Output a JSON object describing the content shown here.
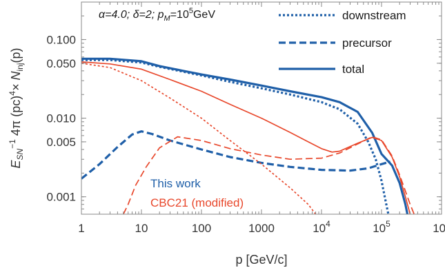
{
  "chart_data": {
    "type": "line",
    "annotation_parts": [
      "α=4.0; δ=2; p",
      "M",
      "=10",
      "5",
      "GeV"
    ],
    "xlabel": "p [GeV/c]",
    "ylabel_parts": [
      "E",
      "SN",
      "−1",
      " 4π (pc)",
      "4",
      "× N",
      "inj",
      "(p)"
    ],
    "x_scale": "log",
    "y_scale": "log",
    "xlim": [
      1,
      1000000
    ],
    "ylim": [
      0.0006,
      0.3
    ],
    "grid": false,
    "x_ticks": [
      {
        "value": 1,
        "label": "1"
      },
      {
        "value": 10,
        "label": "10"
      },
      {
        "value": 100,
        "label": "100"
      },
      {
        "value": 1000,
        "label": "1000"
      },
      {
        "value": 10000,
        "base": "10",
        "exp": "4"
      },
      {
        "value": 100000,
        "base": "10",
        "exp": "5"
      },
      {
        "value": 1000000,
        "base": "10",
        "exp": "6"
      }
    ],
    "y_ticks": [
      {
        "value": 0.001,
        "label": "0.001"
      },
      {
        "value": 0.005,
        "label": "0.005"
      },
      {
        "value": 0.01,
        "label": "0.010"
      },
      {
        "value": 0.05,
        "label": "0.050"
      },
      {
        "value": 0.1,
        "label": "0.100"
      }
    ],
    "legend": {
      "placement": "top-right",
      "entries": [
        {
          "label": "downstream",
          "dash": "dotted"
        },
        {
          "label": "precursor",
          "dash": "dashed"
        },
        {
          "label": "total",
          "dash": "solid"
        }
      ]
    },
    "colors": {
      "this_work": "#1f5fa8",
      "cbc21": "#e8472b"
    },
    "group_labels": {
      "this_work": "This work",
      "cbc21": "CBC21 (modified)"
    },
    "series": [
      {
        "group": "this_work",
        "component": "total",
        "dash": "solid",
        "width": 3.2,
        "points": [
          [
            1,
            0.057
          ],
          [
            3,
            0.057
          ],
          [
            10,
            0.053
          ],
          [
            20,
            0.046
          ],
          [
            50,
            0.04
          ],
          [
            100,
            0.036
          ],
          [
            300,
            0.031
          ],
          [
            1000,
            0.026
          ],
          [
            3000,
            0.022
          ],
          [
            10000,
            0.0185
          ],
          [
            20000,
            0.016
          ],
          [
            40000,
            0.012
          ],
          [
            70000,
            0.0065
          ],
          [
            100000,
            0.0035
          ],
          [
            150000,
            0.0025
          ],
          [
            200000,
            0.0015
          ],
          [
            250000,
            0.0008
          ],
          [
            270000,
            0.0006
          ]
        ]
      },
      {
        "group": "this_work",
        "component": "downstream",
        "dash": "dotted",
        "width": 3.2,
        "points": [
          [
            1,
            0.055
          ],
          [
            3,
            0.055
          ],
          [
            10,
            0.051
          ],
          [
            20,
            0.045
          ],
          [
            50,
            0.039
          ],
          [
            100,
            0.035
          ],
          [
            300,
            0.029
          ],
          [
            1000,
            0.024
          ],
          [
            3000,
            0.02
          ],
          [
            10000,
            0.016
          ],
          [
            20000,
            0.013
          ],
          [
            40000,
            0.0085
          ],
          [
            60000,
            0.005
          ],
          [
            80000,
            0.003
          ],
          [
            100000,
            0.0016
          ],
          [
            120000,
            0.0008
          ],
          [
            130000,
            0.0006
          ]
        ]
      },
      {
        "group": "this_work",
        "component": "precursor",
        "dash": "dashed",
        "width": 3.2,
        "points": [
          [
            1,
            0.0017
          ],
          [
            2,
            0.0026
          ],
          [
            4,
            0.0043
          ],
          [
            7,
            0.0062
          ],
          [
            10,
            0.0068
          ],
          [
            15,
            0.0063
          ],
          [
            30,
            0.0052
          ],
          [
            100,
            0.004
          ],
          [
            300,
            0.0032
          ],
          [
            1000,
            0.0027
          ],
          [
            3000,
            0.0024
          ],
          [
            10000,
            0.0022
          ],
          [
            30000,
            0.00215
          ],
          [
            60000,
            0.0023
          ],
          [
            100000,
            0.0026
          ],
          [
            140000,
            0.0028
          ]
        ]
      },
      {
        "group": "cbc21",
        "component": "total",
        "dash": "solid",
        "width": 1.7,
        "points": [
          [
            1,
            0.052
          ],
          [
            3,
            0.049
          ],
          [
            10,
            0.042
          ],
          [
            30,
            0.031
          ],
          [
            100,
            0.022
          ],
          [
            300,
            0.015
          ],
          [
            1000,
            0.01
          ],
          [
            3000,
            0.0066
          ],
          [
            6000,
            0.005
          ],
          [
            10000,
            0.0041
          ],
          [
            15000,
            0.0037
          ],
          [
            20000,
            0.0038
          ],
          [
            40000,
            0.0048
          ],
          [
            70000,
            0.0057
          ],
          [
            100000,
            0.0052
          ],
          [
            150000,
            0.0032
          ],
          [
            200000,
            0.0018
          ],
          [
            250000,
            0.001
          ],
          [
            300000,
            0.0006
          ]
        ]
      },
      {
        "group": "cbc21",
        "component": "downstream",
        "dash": "dotted",
        "width": 1.7,
        "points": [
          [
            1,
            0.05
          ],
          [
            3,
            0.044
          ],
          [
            10,
            0.03
          ],
          [
            30,
            0.018
          ],
          [
            100,
            0.01
          ],
          [
            300,
            0.0052
          ],
          [
            1000,
            0.0026
          ],
          [
            3000,
            0.0013
          ],
          [
            6000,
            0.0008
          ],
          [
            8000,
            0.0006
          ]
        ]
      },
      {
        "group": "cbc21",
        "component": "precursor",
        "dash": "dashed",
        "width": 1.7,
        "points": [
          [
            5,
            0.0006
          ],
          [
            6,
            0.0008
          ],
          [
            8,
            0.0014
          ],
          [
            12,
            0.0024
          ],
          [
            20,
            0.0042
          ],
          [
            40,
            0.0058
          ],
          [
            100,
            0.0052
          ],
          [
            300,
            0.0041
          ],
          [
            1000,
            0.0034
          ],
          [
            3000,
            0.003
          ],
          [
            10000,
            0.0031
          ],
          [
            20000,
            0.0036
          ],
          [
            40000,
            0.0047
          ],
          [
            70000,
            0.0058
          ],
          [
            100000,
            0.0053
          ],
          [
            150000,
            0.0033
          ],
          [
            200000,
            0.0019
          ],
          [
            300000,
            0.0008
          ],
          [
            350000,
            0.0006
          ]
        ]
      }
    ]
  }
}
